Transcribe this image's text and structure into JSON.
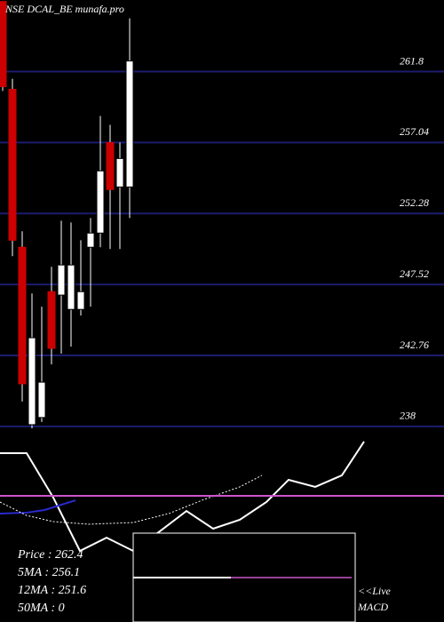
{
  "chart_data": [
    {
      "type": "candlestick",
      "title": "NSE DCAL_BE munafa.pro",
      "categories": [
        null,
        null,
        null,
        null,
        null,
        null,
        null,
        null,
        null,
        null,
        null,
        null,
        null,
        null
      ],
      "open": [
        266.5,
        260.61,
        250.02,
        238.12,
        238.6,
        247.04,
        246.81,
        245.85,
        245.85,
        250.02,
        250.97,
        257.04,
        254.06,
        254.06
      ],
      "high": [
        266.5,
        261.32,
        251.09,
        246.92,
        246.03,
        248.71,
        251.8,
        251.68,
        250.49,
        251.98,
        258.82,
        258.23,
        257.04,
        265.37
      ],
      "low": [
        260.5,
        249.42,
        239.67,
        237.88,
        238.3,
        242.16,
        242.88,
        243.35,
        245.44,
        246.03,
        250.02,
        249.9,
        249.9,
        251.98
      ],
      "close": [
        260.79,
        250.49,
        240.86,
        243.95,
        240.97,
        243.24,
        248.83,
        248.83,
        247.04,
        250.97,
        255.14,
        253.89,
        255.97,
        262.51
      ],
      "up_color": "#ffffff",
      "down_color": "#cc0000",
      "ylim": [
        237.4,
        266.6
      ],
      "yticks": [
        238,
        242.76,
        247.52,
        252.28,
        257.04,
        261.8
      ],
      "grid": true,
      "grid_color": "#1c1c6e"
    },
    {
      "type": "line",
      "xlim": [
        0,
        500
      ],
      "ylim": [
        0,
        100
      ],
      "series": [
        {
          "color": "#ffffff",
          "style": "solid",
          "x": [
            0,
            30,
            60,
            90,
            120,
            150,
            180,
            210,
            240,
            270,
            300,
            325,
            355,
            385,
            410
          ],
          "values": [
            90.5,
            90.5,
            66.7,
            38.1,
            45.2,
            38.1,
            48.6,
            59.5,
            50,
            54.8,
            64.3,
            76.2,
            72.4,
            78.6,
            96.7
          ]
        },
        {
          "color": "#2a2ad0",
          "style": "solid",
          "x": [
            0,
            30,
            50,
            85
          ],
          "values": [
            58.1,
            58.6,
            60,
            65.2
          ]
        },
        {
          "color": "#ffffff",
          "style": "dotted",
          "x": [
            0,
            30,
            60,
            100,
            150,
            190,
            230,
            270,
            295
          ],
          "values": [
            64.3,
            57.1,
            53.8,
            52.4,
            53.3,
            58.1,
            65.7,
            72.4,
            78.6
          ]
        },
        {
          "color": "#cc55cc",
          "style": "solid",
          "x": [
            0,
            500
          ],
          "values": [
            67.6,
            67.6
          ]
        }
      ]
    }
  ],
  "info": {
    "price": "Price   : 262.4",
    "ma5": "5MA : 256.1",
    "ma12": "12MA : 251.6",
    "ma50": "50MA : 0"
  },
  "live": "<<Live",
  "indicator": "MACD"
}
